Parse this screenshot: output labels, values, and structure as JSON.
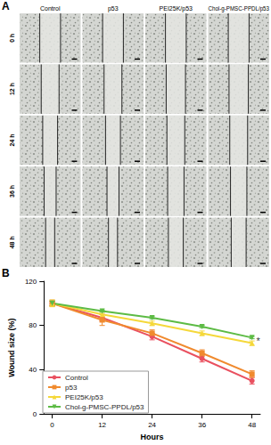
{
  "panel_a": {
    "label": "A",
    "columns": [
      "Control",
      "p53",
      "PEI25K/p53",
      "Chol-g-PMSC-PPDL/p53"
    ],
    "rows": [
      "0 h",
      "12 h",
      "24 h",
      "36 h",
      "48 h"
    ]
  },
  "chart_data": {
    "panel_label": "B",
    "type": "line",
    "x_label": "Hours",
    "y_label": "Wound size (%)",
    "x": [
      0,
      12,
      24,
      36,
      48
    ],
    "xlim": [
      -2,
      50
    ],
    "xticks": [
      0,
      12,
      24,
      36,
      48
    ],
    "ylim": [
      0,
      120
    ],
    "yticks": [
      0,
      40,
      80,
      120
    ],
    "grid": false,
    "legend": "lower left",
    "series": [
      {
        "name": "Control",
        "color": "#e9505f",
        "marker": "circle",
        "values": [
          100,
          87,
          70,
          50,
          30
        ],
        "errors": [
          2,
          3,
          3,
          3,
          3
        ]
      },
      {
        "name": "p53",
        "color": "#f08a2e",
        "marker": "square",
        "values": [
          100,
          85,
          73,
          55,
          36
        ],
        "errors": [
          3,
          5,
          3,
          3,
          3
        ]
      },
      {
        "name": "PEI25K/p53",
        "color": "#f5d83a",
        "marker": "triangle",
        "values": [
          100,
          90,
          82,
          73,
          64
        ],
        "errors": [
          3,
          2,
          2,
          2,
          2
        ]
      },
      {
        "name": "Chol-g-PMSC-PPDL/p53",
        "color": "#5dbb45",
        "marker": "triangle-down",
        "values": [
          100,
          93,
          87,
          79,
          69
        ],
        "errors": [
          2,
          1,
          1,
          1,
          1
        ]
      }
    ],
    "annotations": [
      {
        "text": "*",
        "x": 49.5,
        "y": 66
      }
    ]
  }
}
